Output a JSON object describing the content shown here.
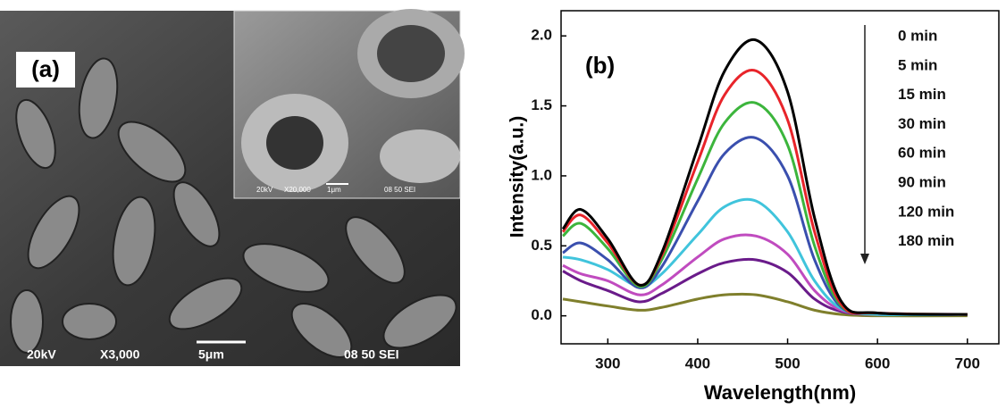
{
  "panel_a": {
    "label": "(a)",
    "voltage": "20kV",
    "magnification": "X3,000",
    "scale_bar": "5μm",
    "info": "08 50 SEI",
    "inset": {
      "voltage": "20kV",
      "magnification": "X20,000",
      "scale_bar": "1μm",
      "info": "08 50 SEI"
    }
  },
  "chart_data": {
    "type": "line",
    "panel_label": "(b)",
    "x_label": "Wavelength(nm)",
    "y_label": "Intensity(a.u.)",
    "x": [
      250,
      270,
      300,
      335,
      360,
      400,
      430,
      465,
      500,
      530,
      560,
      600,
      700
    ],
    "xlim": [
      248,
      735
    ],
    "ylim": [
      -0.2,
      2.18
    ],
    "xticks": [
      300,
      400,
      500,
      600,
      700
    ],
    "yticks": [
      {
        "value": 0,
        "label": "0.0"
      },
      0.5,
      {
        "value": 1,
        "label": "1.0"
      },
      1.5,
      {
        "value": 2,
        "label": "2.0"
      }
    ],
    "series": [
      {
        "name": "0 min",
        "color": "#000000",
        "values": [
          0.62,
          0.76,
          0.55,
          0.22,
          0.45,
          1.2,
          1.75,
          1.97,
          1.6,
          0.7,
          0.1,
          0.02,
          0.01
        ]
      },
      {
        "name": "5 min",
        "color": "#e8242a",
        "values": [
          0.6,
          0.72,
          0.52,
          0.22,
          0.43,
          1.1,
          1.58,
          1.75,
          1.4,
          0.6,
          0.08,
          0.02,
          0.01
        ]
      },
      {
        "name": "15 min",
        "color": "#3cb53c",
        "values": [
          0.57,
          0.66,
          0.48,
          0.21,
          0.4,
          0.98,
          1.38,
          1.52,
          1.22,
          0.5,
          0.07,
          0.02,
          0.01
        ]
      },
      {
        "name": "30 min",
        "color": "#3a4fae",
        "values": [
          0.45,
          0.52,
          0.4,
          0.2,
          0.35,
          0.82,
          1.16,
          1.27,
          1.0,
          0.4,
          0.06,
          0.02,
          0.01
        ]
      },
      {
        "name": "60 min",
        "color": "#40c4dc",
        "values": [
          0.42,
          0.4,
          0.33,
          0.21,
          0.3,
          0.58,
          0.78,
          0.82,
          0.6,
          0.25,
          0.05,
          0.01,
          0.01
        ]
      },
      {
        "name": "90 min",
        "color": "#c04bbf",
        "values": [
          0.36,
          0.3,
          0.25,
          0.15,
          0.22,
          0.42,
          0.55,
          0.57,
          0.44,
          0.18,
          0.04,
          0.01,
          0.01
        ]
      },
      {
        "name": "120 min",
        "color": "#6a1b8a",
        "values": [
          0.32,
          0.25,
          0.18,
          0.1,
          0.16,
          0.3,
          0.38,
          0.4,
          0.31,
          0.12,
          0.03,
          0.01,
          0.01
        ]
      },
      {
        "name": "180 min",
        "color": "#7f7f2c",
        "values": [
          0.12,
          0.1,
          0.07,
          0.04,
          0.06,
          0.12,
          0.15,
          0.15,
          0.1,
          0.04,
          0.01,
          0,
          0
        ]
      }
    ]
  }
}
